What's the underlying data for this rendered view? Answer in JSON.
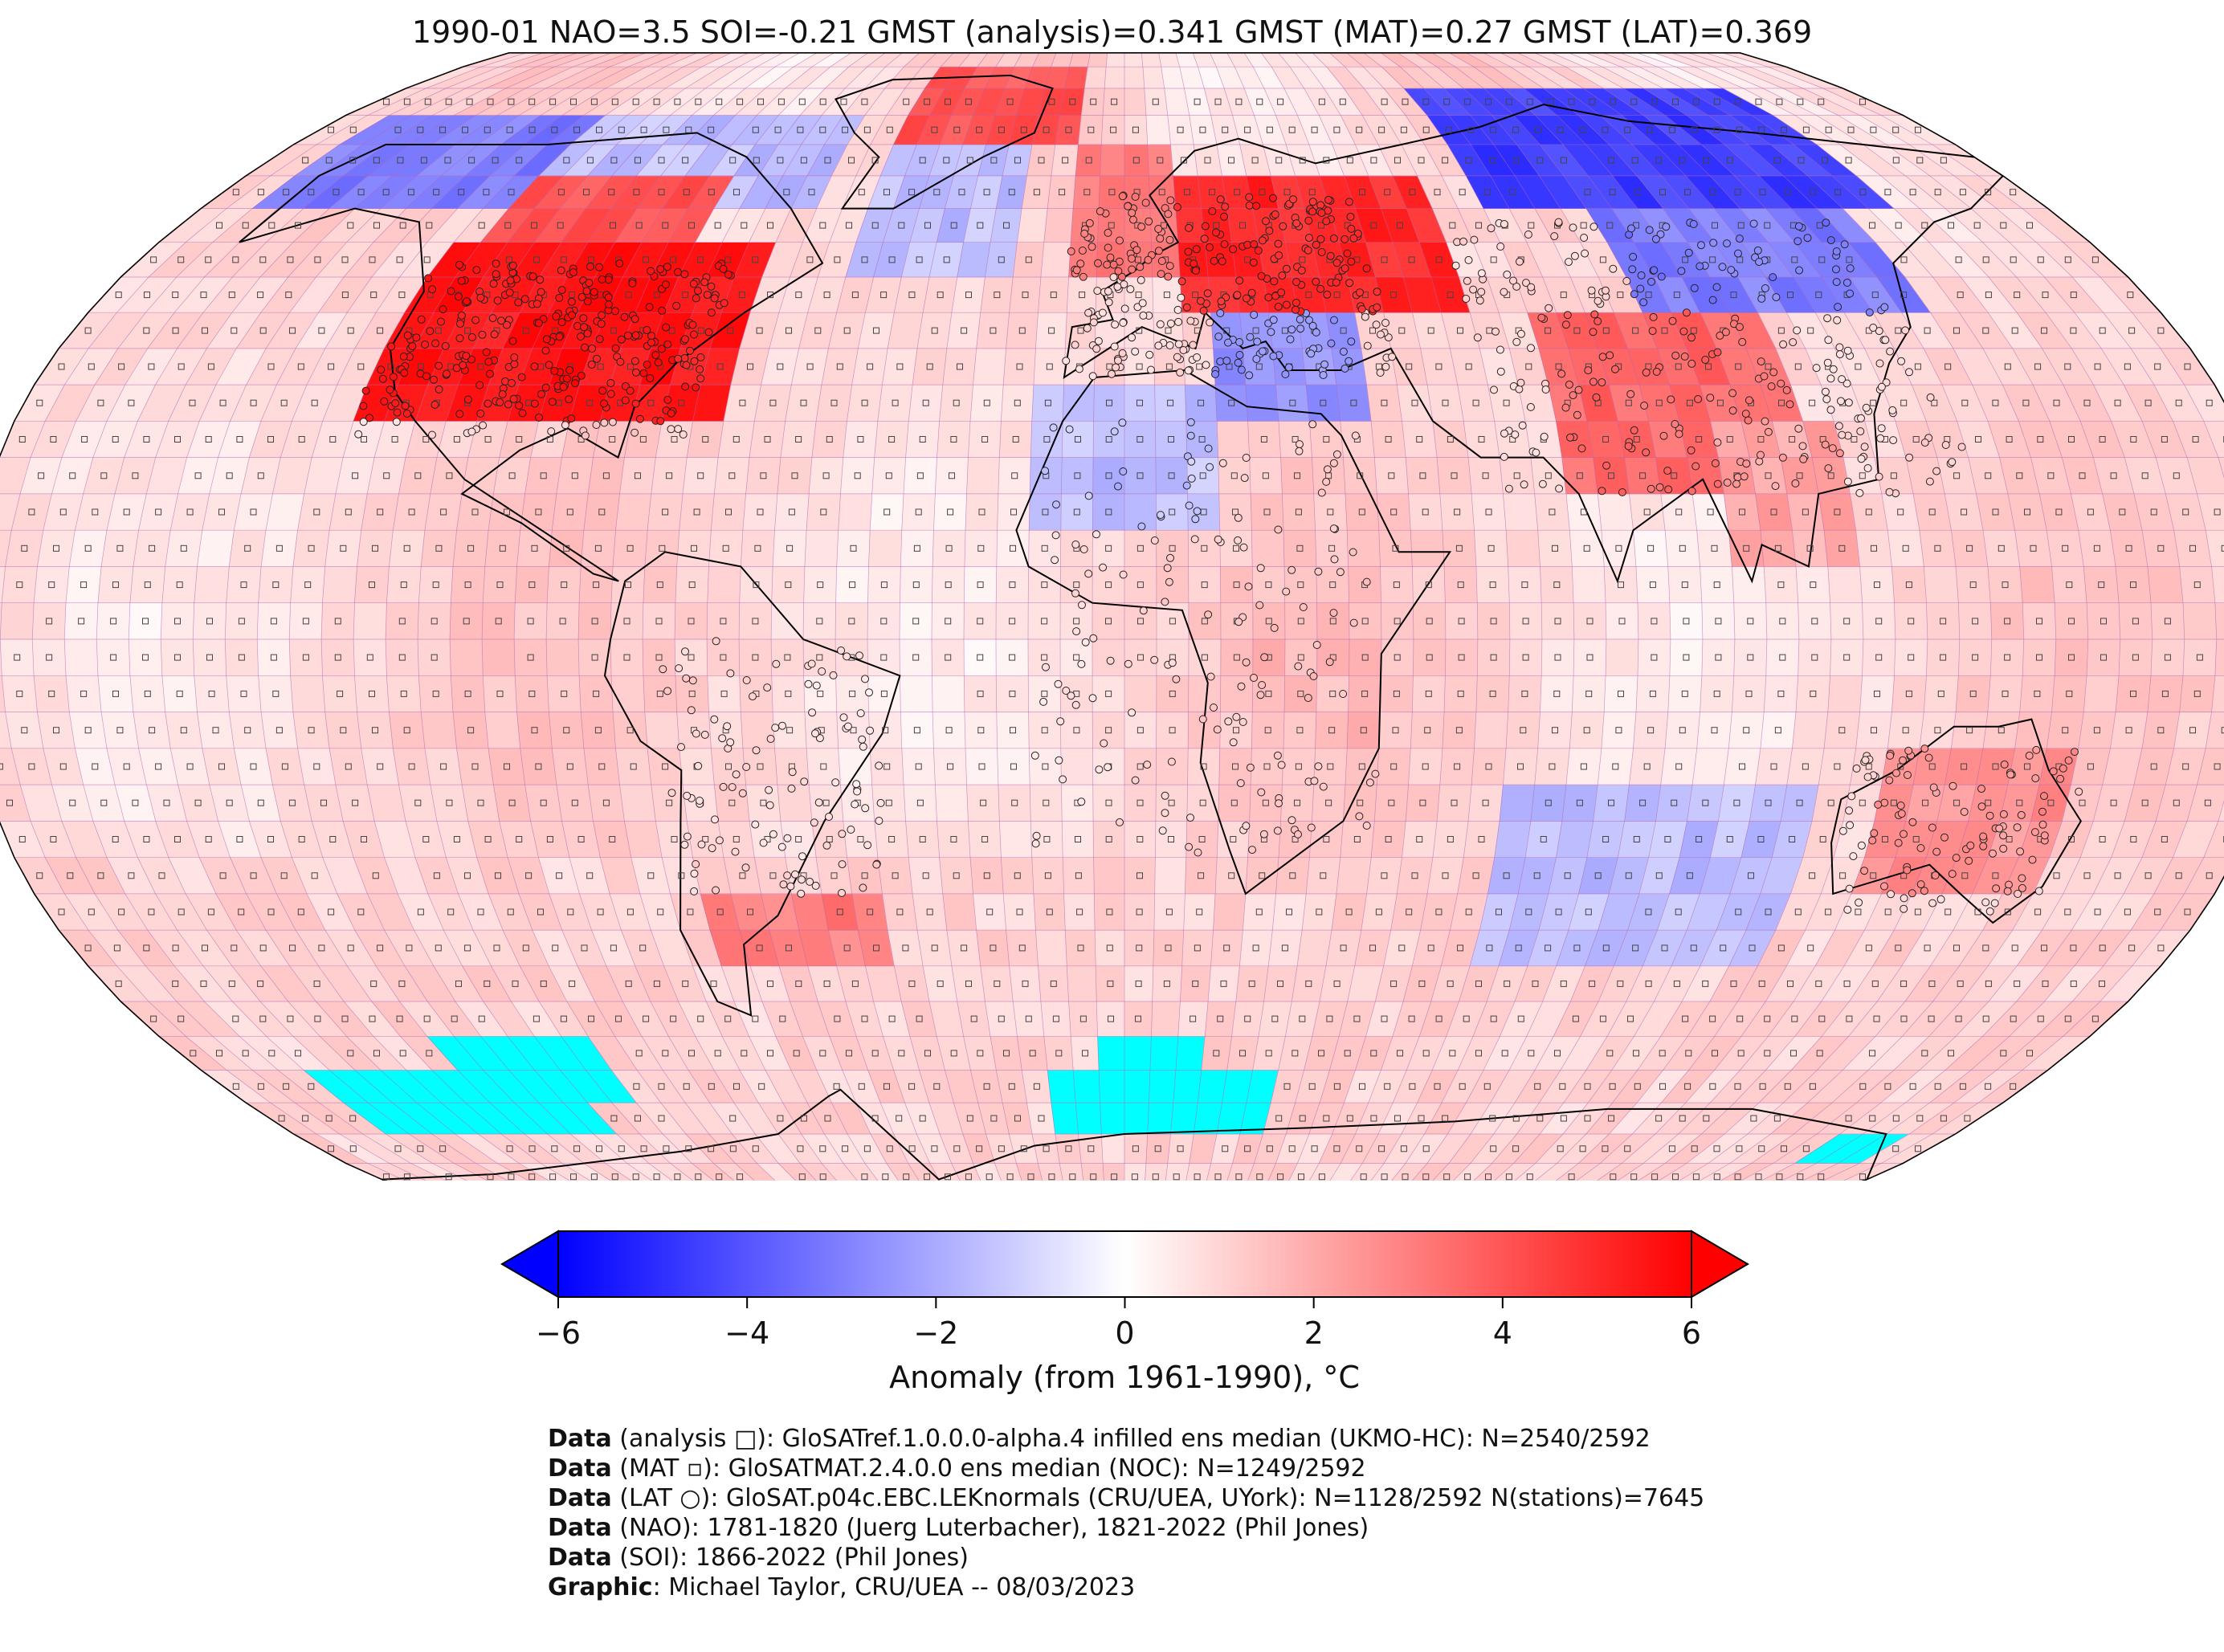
{
  "header": {
    "title": "1990-01 NAO=3.5 SOI=-0.21 GMST (analysis)=0.341 GMST (MAT)=0.27 GMST (LAT)=0.369"
  },
  "map": {
    "projection": "Robinson",
    "grid_resolution_deg": 5,
    "colormap": [
      "#0000ff",
      "#ffffff",
      "#ff0000"
    ],
    "missing_color": "#00ffff",
    "coastline_color": "#000000",
    "gridline_color": "#b266b2",
    "anomaly_regions": [
      {
        "lat": [
          60,
          75
        ],
        "lon": [
          -170,
          -120
        ],
        "value": -3.0
      },
      {
        "lat": [
          60,
          75
        ],
        "lon": [
          -120,
          -60
        ],
        "value": -1.5
      },
      {
        "lat": [
          30,
          55
        ],
        "lon": [
          -125,
          -65
        ],
        "value": 5.5
      },
      {
        "lat": [
          55,
          65
        ],
        "lon": [
          -120,
          -80
        ],
        "value": 4.0
      },
      {
        "lat": [
          70,
          85
        ],
        "lon": [
          -50,
          -10
        ],
        "value": 4.0
      },
      {
        "lat": [
          50,
          70
        ],
        "lon": [
          -50,
          -20
        ],
        "value": -1.5
      },
      {
        "lat": [
          45,
          65
        ],
        "lon": [
          10,
          60
        ],
        "value": 5.0
      },
      {
        "lat": [
          50,
          70
        ],
        "lon": [
          -10,
          10
        ],
        "value": 3.0
      },
      {
        "lat": [
          60,
          80
        ],
        "lon": [
          70,
          150
        ],
        "value": -4.5
      },
      {
        "lat": [
          45,
          60
        ],
        "lon": [
          90,
          140
        ],
        "value": -3.0
      },
      {
        "lat": [
          30,
          45
        ],
        "lon": [
          15,
          40
        ],
        "value": -2.5
      },
      {
        "lat": [
          15,
          35
        ],
        "lon": [
          -15,
          15
        ],
        "value": -1.5
      },
      {
        "lat": [
          20,
          45
        ],
        "lon": [
          70,
          110
        ],
        "value": 3.5
      },
      {
        "lat": [
          10,
          30
        ],
        "lon": [
          95,
          115
        ],
        "value": 2.0
      },
      {
        "lat": [
          -35,
          -15
        ],
        "lon": [
          120,
          150
        ],
        "value": 2.5
      },
      {
        "lat": [
          -45,
          -20
        ],
        "lon": [
          60,
          110
        ],
        "value": -1.5
      },
      {
        "lat": [
          -45,
          -35
        ],
        "lon": [
          -70,
          -40
        ],
        "value": 3.0
      },
      {
        "lat": [
          -15,
          5
        ],
        "lon": [
          20,
          40
        ],
        "value": 1.5
      }
    ],
    "missing_regions": [
      {
        "lat": [
          -70,
          -60
        ],
        "lon": [
          -160,
          -110
        ]
      },
      {
        "lat": [
          -65,
          -55
        ],
        "lon": [
          -130,
          -100
        ]
      },
      {
        "lat": [
          -70,
          -60
        ],
        "lon": [
          -15,
          30
        ]
      },
      {
        "lat": [
          -65,
          -55
        ],
        "lon": [
          -5,
          15
        ]
      },
      {
        "lat": [
          -75,
          -70
        ],
        "lon": [
          155,
          170
        ]
      }
    ]
  },
  "colorbar": {
    "ticks": [
      "−6",
      "−4",
      "−2",
      "0",
      "2",
      "4",
      "6"
    ],
    "tick_values": [
      -6,
      -4,
      -2,
      0,
      2,
      4,
      6
    ],
    "vmin": -6,
    "vmax": 6,
    "label": "Anomaly (from 1961-1990), °C",
    "extend": "both"
  },
  "credits": [
    {
      "key": "Data",
      "text": " (analysis □): GloSATref.1.0.0.0-alpha.4 infilled ens median (UKMO-HC): N=2540/2592"
    },
    {
      "key": "Data",
      "text": " (MAT ▫): GloSATMAT.2.4.0.0 ens median (NOC): N=1249/2592"
    },
    {
      "key": "Data",
      "text": " (LAT ○): GloSAT.p04c.EBC.LEKnormals (CRU/UEA, UYork): N=1128/2592 N(stations)=7645"
    },
    {
      "key": "Data",
      "text": " (NAO): 1781-1820 (Juerg Luterbacher), 1821-2022 (Phil Jones)"
    },
    {
      "key": "Data",
      "text": " (SOI): 1866-2022 (Phil Jones)"
    },
    {
      "key": "Graphic",
      "text": ": Michael Taylor, CRU/UEA -- 08/03/2023"
    }
  ]
}
